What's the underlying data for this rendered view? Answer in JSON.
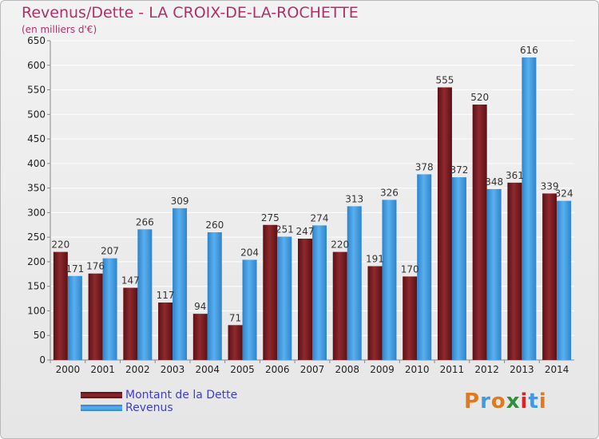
{
  "chart_data": {
    "type": "bar",
    "title": "Revenus/Dette - LA CROIX-DE-LA-ROCHETTE",
    "subtitle": "(en milliers d'€)",
    "categories": [
      "2000",
      "2001",
      "2002",
      "2003",
      "2004",
      "2005",
      "2006",
      "2007",
      "2008",
      "2009",
      "2010",
      "2011",
      "2012",
      "2013",
      "2014"
    ],
    "series": [
      {
        "name": "Montant de la Dette",
        "color": "#7a1e22",
        "values": [
          220,
          176,
          147,
          117,
          94,
          71,
          275,
          247,
          220,
          191,
          170,
          555,
          520,
          361,
          339
        ]
      },
      {
        "name": "Revenus",
        "color": "#3f9be0",
        "values": [
          171,
          207,
          266,
          309,
          260,
          204,
          251,
          274,
          313,
          326,
          378,
          372,
          348,
          616,
          324
        ]
      }
    ],
    "ylim": [
      0,
      650
    ],
    "yticks": [
      0,
      50,
      100,
      150,
      200,
      250,
      300,
      350,
      400,
      450,
      500,
      550,
      600,
      650
    ],
    "grid": true,
    "legend_position": "bottom-left"
  },
  "logo": {
    "text": "Proxiti",
    "letter_colors": [
      "#e07a1f",
      "#3f9be0",
      "#e07a1f",
      "#2f8f3a",
      "#d22",
      "#3f9be0",
      "#e07a1f"
    ]
  }
}
